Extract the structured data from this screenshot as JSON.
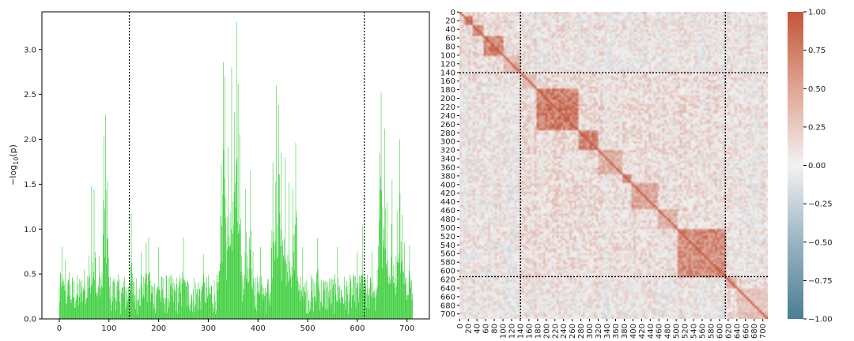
{
  "chart_data": [
    {
      "type": "bar",
      "ylabel": "-log10(p)",
      "ylabel_main": "−log",
      "ylabel_sub": "10",
      "ylabel_arg": "(p)",
      "xlim": [
        -35,
        745
      ],
      "ylim": [
        0,
        3.42
      ],
      "xticks": [
        0,
        100,
        200,
        300,
        400,
        500,
        600,
        700
      ],
      "yticks": [
        0.0,
        0.5,
        1.0,
        1.5,
        2.0,
        2.5,
        3.0
      ],
      "ytick_labels": [
        "0.0",
        "0.5",
        "1.0",
        "1.5",
        "2.0",
        "2.5",
        "3.0"
      ],
      "bar_color": "#33cc33",
      "vlines": [
        141,
        614
      ],
      "grid": false,
      "n_bars": 712,
      "peaks": [
        {
          "x": 2,
          "y": 0.52
        },
        {
          "x": 6,
          "y": 0.8
        },
        {
          "x": 12,
          "y": 0.65
        },
        {
          "x": 20,
          "y": 0.52
        },
        {
          "x": 50,
          "y": 0.55
        },
        {
          "x": 60,
          "y": 0.7
        },
        {
          "x": 65,
          "y": 1.48
        },
        {
          "x": 70,
          "y": 1.45
        },
        {
          "x": 80,
          "y": 0.7
        },
        {
          "x": 90,
          "y": 2.03
        },
        {
          "x": 93,
          "y": 2.28
        },
        {
          "x": 96,
          "y": 1.53
        },
        {
          "x": 110,
          "y": 0.45
        },
        {
          "x": 130,
          "y": 0.42
        },
        {
          "x": 145,
          "y": 1.17
        },
        {
          "x": 165,
          "y": 0.75
        },
        {
          "x": 175,
          "y": 0.85
        },
        {
          "x": 180,
          "y": 0.91
        },
        {
          "x": 200,
          "y": 0.8
        },
        {
          "x": 250,
          "y": 0.91
        },
        {
          "x": 290,
          "y": 0.72
        },
        {
          "x": 326,
          "y": 1.73
        },
        {
          "x": 330,
          "y": 2.86
        },
        {
          "x": 333,
          "y": 2.7
        },
        {
          "x": 340,
          "y": 1.91
        },
        {
          "x": 347,
          "y": 2.8
        },
        {
          "x": 353,
          "y": 2.3
        },
        {
          "x": 357,
          "y": 3.31
        },
        {
          "x": 360,
          "y": 2.62
        },
        {
          "x": 363,
          "y": 2.06
        },
        {
          "x": 375,
          "y": 1.45
        },
        {
          "x": 385,
          "y": 1.65
        },
        {
          "x": 390,
          "y": 0.75
        },
        {
          "x": 405,
          "y": 0.8
        },
        {
          "x": 430,
          "y": 1.74
        },
        {
          "x": 437,
          "y": 2.6
        },
        {
          "x": 442,
          "y": 2.38
        },
        {
          "x": 447,
          "y": 1.85
        },
        {
          "x": 455,
          "y": 1.8
        },
        {
          "x": 462,
          "y": 1.52
        },
        {
          "x": 470,
          "y": 1.45
        },
        {
          "x": 476,
          "y": 1.96
        },
        {
          "x": 490,
          "y": 0.8
        },
        {
          "x": 520,
          "y": 0.9
        },
        {
          "x": 560,
          "y": 0.8
        },
        {
          "x": 600,
          "y": 0.75
        },
        {
          "x": 610,
          "y": 1.05
        },
        {
          "x": 630,
          "y": 0.75
        },
        {
          "x": 645,
          "y": 1.85
        },
        {
          "x": 648,
          "y": 2.52
        },
        {
          "x": 655,
          "y": 2.12
        },
        {
          "x": 660,
          "y": 1.3
        },
        {
          "x": 670,
          "y": 1.55
        },
        {
          "x": 680,
          "y": 1.2
        },
        {
          "x": 685,
          "y": 2.0
        },
        {
          "x": 690,
          "y": 1.16
        },
        {
          "x": 695,
          "y": 0.85
        },
        {
          "x": 705,
          "y": 0.82
        }
      ]
    },
    {
      "type": "heatmap",
      "size": 712,
      "vmin": -1.0,
      "vmax": 1.0,
      "colormap": {
        "low": "#4a7d96",
        "mid": "#f2f2f2",
        "high": "#c3553a"
      },
      "ytick_labels": [
        "0",
        "20",
        "40",
        "60",
        "80",
        "100",
        "120",
        "140",
        "160",
        "180",
        "200",
        "220",
        "240",
        "260",
        "280",
        "300",
        "320",
        "340",
        "360",
        "380",
        "400",
        "420",
        "440",
        "460",
        "480",
        "500",
        "520",
        "540",
        "560",
        "580",
        "600",
        "620",
        "640",
        "660",
        "680",
        "700"
      ],
      "xtick_labels": [
        "0",
        "20",
        "40",
        "60",
        "80",
        "100",
        "120",
        "140",
        "160",
        "180",
        "200",
        "220",
        "240",
        "260",
        "280",
        "300",
        "320",
        "340",
        "360",
        "380",
        "400",
        "420",
        "440",
        "460",
        "480",
        "500",
        "520",
        "540",
        "560",
        "580",
        "600",
        "620",
        "640",
        "660",
        "680",
        "700"
      ],
      "boundaries": [
        141,
        614
      ],
      "blocks": [
        {
          "start": 10,
          "end": 28,
          "strength": 0.85
        },
        {
          "start": 28,
          "end": 55,
          "strength": 0.7
        },
        {
          "start": 55,
          "end": 100,
          "strength": 0.8
        },
        {
          "start": 100,
          "end": 141,
          "strength": 0.45
        },
        {
          "start": 141,
          "end": 175,
          "strength": 0.35
        },
        {
          "start": 175,
          "end": 270,
          "strength": 0.85
        },
        {
          "start": 270,
          "end": 320,
          "strength": 0.8
        },
        {
          "start": 320,
          "end": 375,
          "strength": 0.5
        },
        {
          "start": 375,
          "end": 395,
          "strength": 0.7
        },
        {
          "start": 395,
          "end": 455,
          "strength": 0.55
        },
        {
          "start": 455,
          "end": 500,
          "strength": 0.5
        },
        {
          "start": 500,
          "end": 614,
          "strength": 0.75
        },
        {
          "start": 614,
          "end": 640,
          "strength": 0.5
        },
        {
          "start": 640,
          "end": 712,
          "strength": 0.35
        }
      ],
      "colorbar": {
        "ticks": [
          1.0,
          0.75,
          0.5,
          0.25,
          0.0,
          -0.25,
          -0.5,
          -0.75,
          -1.0
        ],
        "tick_labels": [
          "1.00",
          "0.75",
          "0.50",
          "0.25",
          "0.00",
          "−0.25",
          "−0.50",
          "−0.75",
          "−1.00"
        ]
      }
    }
  ]
}
